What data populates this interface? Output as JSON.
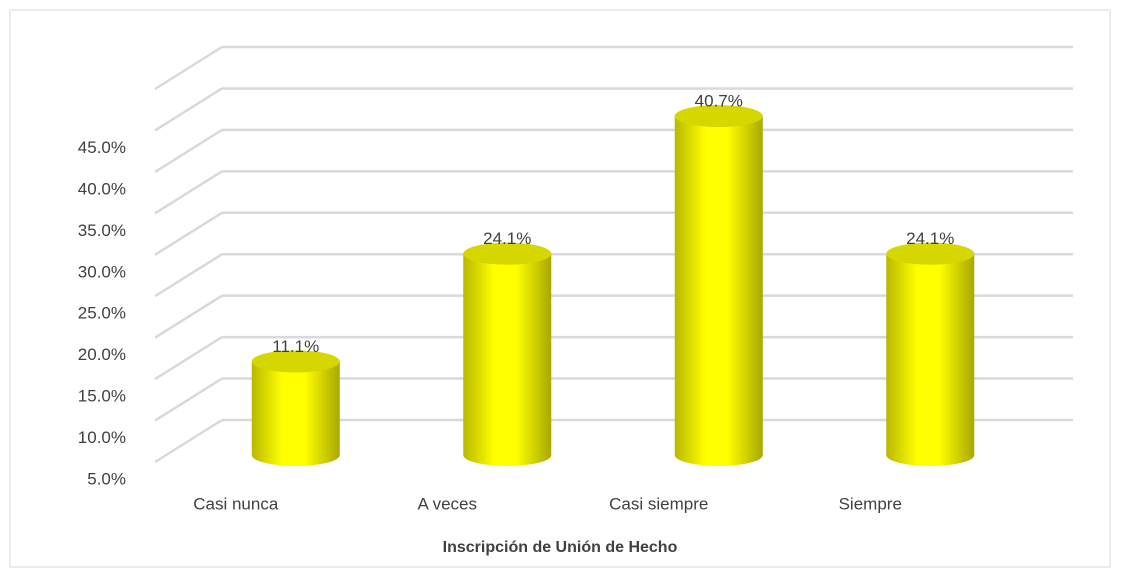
{
  "chart_data": {
    "type": "bar3d",
    "x_label": "Inscripción de Unión de Hecho",
    "categories": [
      "Casi nunca",
      "A veces",
      "Casi siempre",
      "Siempre"
    ],
    "values": [
      11.1,
      24.1,
      40.7,
      24.1
    ],
    "value_labels": [
      "11.1%",
      "24.1%",
      "40.7%",
      "24.1%"
    ],
    "color": "#ffff00",
    "ylim": [
      5,
      50
    ],
    "yticks": [
      {
        "value": 5,
        "label": "5.0%"
      },
      {
        "value": 10,
        "label": "10.0%"
      },
      {
        "value": 15,
        "label": "15.0%"
      },
      {
        "value": 20,
        "label": "20.0%"
      },
      {
        "value": 25,
        "label": "25.0%"
      },
      {
        "value": 30,
        "label": "30.0%"
      },
      {
        "value": 35,
        "label": "35.0%"
      },
      {
        "value": 40,
        "label": "40.0%"
      },
      {
        "value": 45,
        "label": "45.0%"
      }
    ],
    "grid": true
  }
}
